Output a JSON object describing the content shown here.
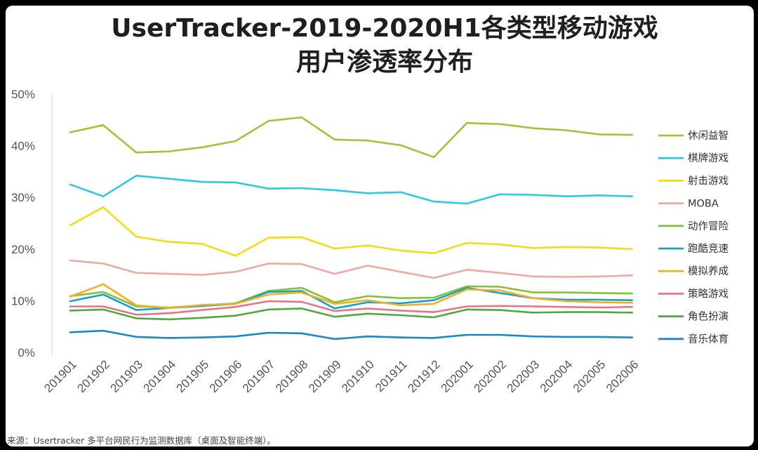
{
  "chart_data": {
    "type": "line",
    "title_line1": "UserTracker-2019-2020H1各类型移动游戏",
    "title_line2": "用户渗透率分布",
    "y_ticks": [
      "50%",
      "40%",
      "30%",
      "20%",
      "10%",
      "0%"
    ],
    "ylim": [
      0,
      50
    ],
    "categories": [
      "201901",
      "201902",
      "201903",
      "201904",
      "201905",
      "201906",
      "201907",
      "201908",
      "201909",
      "201910",
      "201911",
      "201912",
      "202001",
      "202002",
      "202003",
      "202004",
      "202005",
      "202006"
    ],
    "legend_position": "right",
    "grid": false,
    "series": [
      {
        "name": "休闲益智",
        "color": "#a3c23c",
        "values": [
          42.6,
          44.0,
          38.7,
          38.9,
          39.7,
          40.9,
          44.8,
          45.5,
          41.2,
          41.0,
          40.1,
          37.8,
          44.4,
          44.2,
          43.4,
          43.0,
          42.2,
          42.1
        ]
      },
      {
        "name": "棋牌游戏",
        "color": "#2ec8e0",
        "values": [
          32.5,
          30.2,
          34.2,
          33.6,
          33.0,
          32.9,
          31.7,
          31.8,
          31.4,
          30.8,
          31.0,
          29.2,
          28.8,
          30.6,
          30.5,
          30.2,
          30.4,
          30.2
        ]
      },
      {
        "name": "射击游戏",
        "color": "#f4dc14",
        "values": [
          24.6,
          28.1,
          22.4,
          21.4,
          21.0,
          18.7,
          22.2,
          22.3,
          20.1,
          20.7,
          19.7,
          19.2,
          21.2,
          20.9,
          20.2,
          20.4,
          20.3,
          20.0
        ]
      },
      {
        "name": "MOBA",
        "color": "#f0a8a2",
        "values": [
          17.8,
          17.2,
          15.4,
          15.2,
          15.0,
          15.6,
          17.2,
          17.1,
          15.2,
          16.8,
          15.6,
          14.4,
          16.0,
          15.4,
          14.7,
          14.6,
          14.7,
          14.9
        ]
      },
      {
        "name": "动作冒险",
        "color": "#86bf3d",
        "values": [
          10.9,
          11.7,
          8.9,
          8.7,
          9.1,
          9.5,
          11.9,
          12.5,
          9.7,
          10.9,
          10.5,
          10.6,
          12.8,
          12.7,
          11.6,
          11.6,
          11.5,
          11.4
        ]
      },
      {
        "name": "跑酷竞速",
        "color": "#14a3c8",
        "values": [
          9.9,
          11.2,
          8.2,
          8.6,
          9.0,
          9.4,
          11.7,
          11.9,
          8.5,
          9.7,
          9.5,
          10.1,
          12.5,
          11.5,
          10.5,
          10.2,
          10.2,
          10.1
        ]
      },
      {
        "name": "模拟养成",
        "color": "#f2b01e",
        "values": [
          10.8,
          13.2,
          9.1,
          8.6,
          9.2,
          9.4,
          11.2,
          11.6,
          9.4,
          10.1,
          9.1,
          9.4,
          12.2,
          12.0,
          10.5,
          9.9,
          9.7,
          9.6
        ]
      },
      {
        "name": "策略游戏",
        "color": "#e8748a",
        "values": [
          8.9,
          8.9,
          7.3,
          7.6,
          8.2,
          8.8,
          9.9,
          9.8,
          8.0,
          8.5,
          8.1,
          7.8,
          8.9,
          9.0,
          8.9,
          8.8,
          8.7,
          8.8
        ]
      },
      {
        "name": "角色扮演",
        "color": "#4dab3c",
        "values": [
          8.1,
          8.3,
          6.6,
          6.4,
          6.7,
          7.1,
          8.3,
          8.5,
          6.9,
          7.5,
          7.2,
          6.8,
          8.3,
          8.2,
          7.7,
          7.8,
          7.8,
          7.7
        ]
      },
      {
        "name": "音乐体育",
        "color": "#1788c0",
        "values": [
          3.9,
          4.2,
          3.0,
          2.8,
          2.9,
          3.1,
          3.8,
          3.7,
          2.6,
          3.1,
          2.9,
          2.8,
          3.4,
          3.4,
          3.1,
          3.0,
          3.0,
          2.9
        ]
      }
    ]
  },
  "source_note": "来源：Usertracker 多平台网民行为监测数据库（桌面及智能终端）。"
}
